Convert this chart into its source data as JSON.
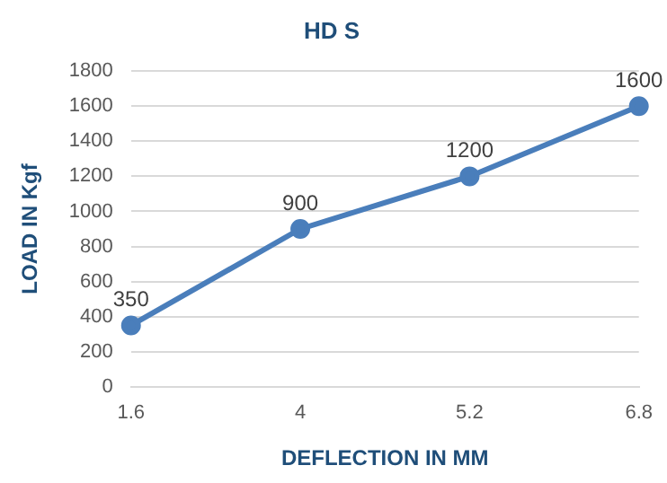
{
  "chart_data": {
    "type": "line",
    "title": "HD S",
    "xlabel": "DEFLECTION IN MM",
    "ylabel": "LOAD IN Kgf",
    "categories": [
      "1.6",
      "4",
      "5.2",
      "6.8"
    ],
    "series": [
      {
        "color": "#4a7ebb",
        "values": [
          350,
          900,
          1200,
          1600
        ]
      }
    ],
    "ylim": [
      0,
      1800
    ],
    "yticks": [
      0,
      200,
      400,
      600,
      800,
      1000,
      1200,
      1400,
      1600,
      1800
    ],
    "grid": "y",
    "legend": false,
    "marker": "circle",
    "line_style": "solid",
    "data_labels": true
  }
}
